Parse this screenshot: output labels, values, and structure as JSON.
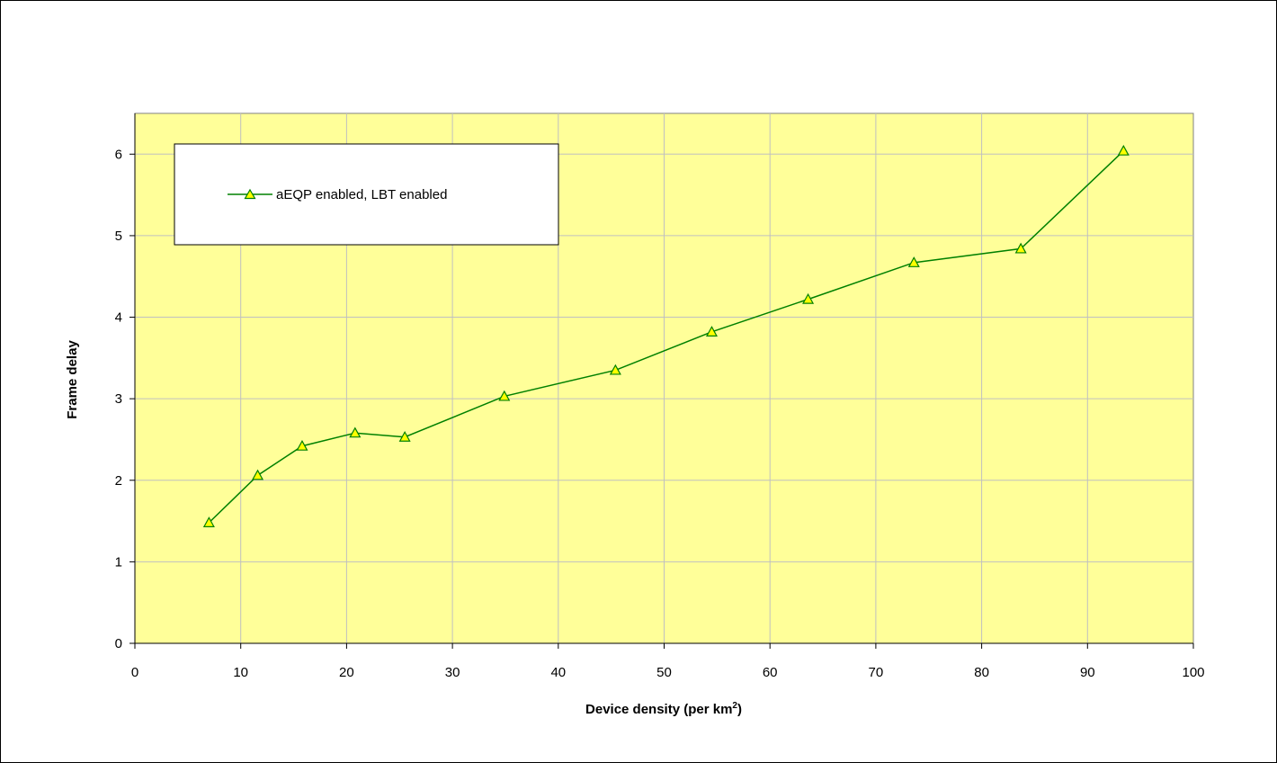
{
  "chart_data": {
    "type": "line",
    "title": "",
    "xlabel": "Device density (per km",
    "xlabel_sup": "2",
    "xlabel_suffix": ")",
    "ylabel": "Frame delay",
    "xlim": [
      0,
      100
    ],
    "ylim": [
      0,
      6.5
    ],
    "xticks": [
      0,
      10,
      20,
      30,
      40,
      50,
      60,
      70,
      80,
      90,
      100
    ],
    "yticks": [
      0,
      1,
      2,
      3,
      4,
      5,
      6
    ],
    "grid": true,
    "legend_position": "top-left",
    "plot_background": "#FFFF99",
    "series": [
      {
        "name": "aEQP enabled, LBT enabled",
        "line_color": "#008000",
        "marker": "triangle",
        "marker_fill": "#FFFF00",
        "x": [
          7.0,
          11.6,
          15.8,
          20.8,
          25.5,
          34.9,
          45.4,
          54.5,
          63.6,
          73.6,
          83.7,
          93.4
        ],
        "y": [
          1.48,
          2.06,
          2.42,
          2.58,
          2.53,
          3.03,
          3.35,
          3.82,
          4.22,
          4.67,
          4.84,
          6.04
        ]
      }
    ]
  }
}
